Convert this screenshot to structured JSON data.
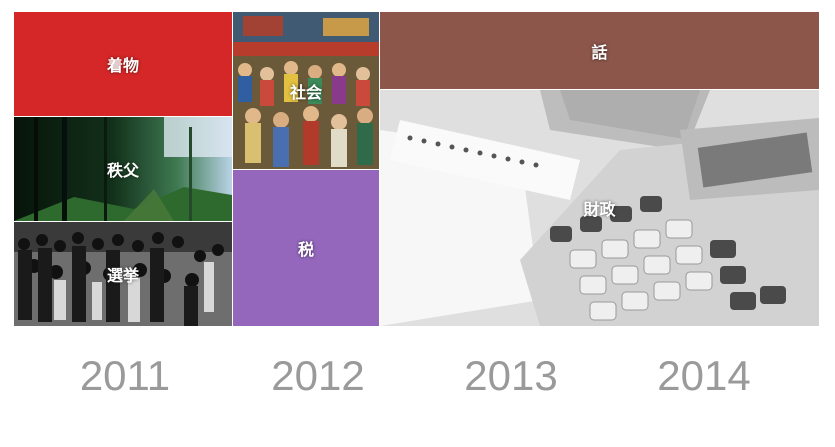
{
  "tiles": {
    "kimono": {
      "label": "着物",
      "color": "#d62728"
    },
    "chichibu": {
      "label": "秩父"
    },
    "election": {
      "label": "選挙"
    },
    "society": {
      "label": "社会"
    },
    "tax": {
      "label": "税",
      "color": "#9467bd"
    },
    "talk": {
      "label": "話",
      "color": "#8c564b"
    },
    "finance": {
      "label": "財政"
    }
  },
  "years": [
    "2011",
    "2012",
    "2013",
    "2014"
  ]
}
